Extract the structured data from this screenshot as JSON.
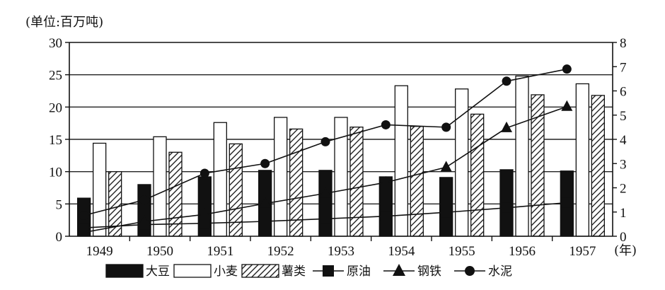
{
  "chart_data": {
    "type": "bar",
    "unit_label": "(单位:百万吨)",
    "x_unit": "(年)",
    "categories": [
      "1949",
      "1950",
      "1951",
      "1952",
      "1953",
      "1954",
      "1955",
      "1956",
      "1957"
    ],
    "ylim_left": [
      0,
      30
    ],
    "yticks_left": [
      "0",
      "5",
      "10",
      "15",
      "20",
      "25",
      "30"
    ],
    "ylim_right": [
      0,
      8
    ],
    "yticks_right": [
      "0",
      "1",
      "2",
      "3",
      "4",
      "5",
      "6",
      "7",
      "8"
    ],
    "gridlines": [
      5,
      10,
      15,
      20,
      25
    ],
    "bar_series": [
      {
        "name": "大豆",
        "axis": "left",
        "style": "solid",
        "values": [
          5.9,
          8.0,
          9.2,
          10.2,
          10.2,
          9.2,
          9.1,
          10.3,
          10.1
        ]
      },
      {
        "name": "小麦",
        "axis": "left",
        "style": "hollow",
        "values": [
          14.4,
          15.4,
          17.6,
          18.4,
          18.4,
          23.3,
          22.8,
          24.8,
          23.6
        ]
      },
      {
        "name": "薯类",
        "axis": "left",
        "style": "hatched",
        "values": [
          10.0,
          13.0,
          14.3,
          16.6,
          16.9,
          17.0,
          18.9,
          21.9,
          21.8
        ]
      }
    ],
    "line_series": [
      {
        "name": "原油",
        "axis": "left",
        "marker": "square",
        "values": [
          1.3,
          1.8,
          2.0,
          2.3,
          2.7,
          3.1,
          3.7,
          4.4,
          5.2
        ]
      },
      {
        "name": "钢铁",
        "axis": "right",
        "marker": "triangle",
        "values": [
          0.16,
          0.61,
          0.9,
          1.35,
          1.77,
          2.22,
          2.85,
          4.47,
          5.35
        ]
      },
      {
        "name": "水泥",
        "axis": "right",
        "marker": "circle",
        "values": [
          0.86,
          1.5,
          2.6,
          3.0,
          3.9,
          4.6,
          4.5,
          6.4,
          6.9
        ]
      }
    ]
  }
}
